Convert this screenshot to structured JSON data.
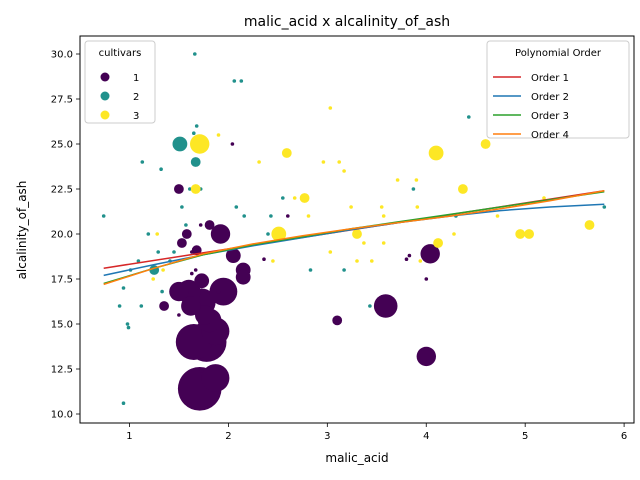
{
  "chart_data": {
    "type": "scatter",
    "title": "malic_acid x alcalinity_of_ash",
    "xlabel": "malic_acid",
    "ylabel": "alcalinity_of_ash",
    "xlim": [
      0.5,
      6.1
    ],
    "ylim": [
      9.5,
      31.0
    ],
    "xticks": [
      1,
      2,
      3,
      4,
      5,
      6
    ],
    "yticks": [
      10.0,
      12.5,
      15.0,
      17.5,
      20.0,
      22.5,
      25.0,
      27.5,
      30.0
    ],
    "grid": false,
    "legend_cultivars": {
      "title": "cultivars",
      "placement": "top-left",
      "entries": [
        {
          "label": "1",
          "color": "#440154"
        },
        {
          "label": "2",
          "color": "#21918c"
        },
        {
          "label": "3",
          "color": "#fde725"
        }
      ]
    },
    "legend_polynomial": {
      "title": "Polynomial Order",
      "placement": "top-right",
      "entries": [
        {
          "label": "Order 1",
          "color": "#d62728"
        },
        {
          "label": "Order 2",
          "color": "#1f77b4"
        },
        {
          "label": "Order 3",
          "color": "#2ca02c"
        },
        {
          "label": "Order 4",
          "color": "#ff7f0e"
        }
      ]
    },
    "size_scale": {
      "min": 1,
      "max": 10
    },
    "series": [
      {
        "cultivar": "1",
        "color": "#440154",
        "points": [
          [
            1.71,
            11.4,
            10
          ],
          [
            1.78,
            14.0,
            9
          ],
          [
            1.65,
            14.0,
            8
          ],
          [
            1.87,
            12.0,
            6
          ],
          [
            1.87,
            14.6,
            6
          ],
          [
            1.73,
            16.2,
            6
          ],
          [
            1.95,
            16.8,
            6
          ],
          [
            1.6,
            16.8,
            5
          ],
          [
            1.81,
            15.2,
            5
          ],
          [
            1.5,
            16.8,
            4
          ],
          [
            1.76,
            15.5,
            4
          ],
          [
            1.62,
            16.0,
            4
          ],
          [
            1.92,
            20.0,
            4
          ],
          [
            2.05,
            18.8,
            3
          ],
          [
            2.15,
            18.0,
            3
          ],
          [
            2.15,
            17.6,
            3
          ],
          [
            1.73,
            17.4,
            3
          ],
          [
            1.35,
            16.0,
            2
          ],
          [
            3.59,
            16.0,
            5
          ],
          [
            4.0,
            13.2,
            4
          ],
          [
            4.04,
            18.9,
            4
          ],
          [
            1.5,
            22.5,
            2
          ],
          [
            1.58,
            20.0,
            2
          ],
          [
            1.53,
            19.5,
            2
          ],
          [
            1.68,
            19.1,
            2
          ],
          [
            1.81,
            20.5,
            2
          ],
          [
            1.72,
            20.5,
            1
          ],
          [
            1.63,
            17.8,
            1
          ],
          [
            3.1,
            15.2,
            2
          ],
          [
            3.83,
            18.8,
            1
          ],
          [
            4.0,
            17.5,
            1
          ],
          [
            2.04,
            25.0,
            1
          ],
          [
            2.6,
            21.0,
            1
          ],
          [
            2.36,
            18.6,
            1
          ],
          [
            1.5,
            15.5,
            1
          ],
          [
            1.67,
            18.0,
            1
          ],
          [
            1.63,
            19.0,
            1
          ],
          [
            3.8,
            18.6,
            1
          ],
          [
            1.73,
            12.4,
            1
          ],
          [
            1.9,
            16.8,
            1
          ]
        ]
      },
      {
        "cultivar": "2",
        "color": "#21918c",
        "points": [
          [
            1.51,
            25.0,
            3
          ],
          [
            1.67,
            24.0,
            2
          ],
          [
            1.66,
            30.0,
            1
          ],
          [
            1.25,
            18.0,
            2
          ],
          [
            0.94,
            17.0,
            1
          ],
          [
            0.9,
            16.0,
            1
          ],
          [
            0.98,
            15.0,
            1
          ],
          [
            1.33,
            16.8,
            1
          ],
          [
            1.09,
            18.5,
            1
          ],
          [
            0.74,
            21.0,
            1
          ],
          [
            0.94,
            10.6,
            1
          ],
          [
            1.53,
            21.5,
            1
          ],
          [
            1.61,
            22.5,
            1
          ],
          [
            1.72,
            22.5,
            1
          ],
          [
            1.12,
            16.0,
            1
          ],
          [
            1.13,
            24.0,
            1
          ],
          [
            1.32,
            23.6,
            1
          ],
          [
            1.65,
            25.6,
            1
          ],
          [
            1.68,
            26.0,
            1
          ],
          [
            2.06,
            28.5,
            1
          ],
          [
            2.13,
            28.5,
            1
          ],
          [
            2.43,
            21.0,
            1
          ],
          [
            2.55,
            22.0,
            1
          ],
          [
            2.83,
            18.0,
            1
          ],
          [
            3.17,
            18.0,
            1
          ],
          [
            3.43,
            16.0,
            1
          ],
          [
            3.87,
            22.5,
            1
          ],
          [
            4.3,
            21.0,
            1
          ],
          [
            4.43,
            26.5,
            1
          ],
          [
            5.8,
            21.5,
            1
          ],
          [
            1.01,
            18.0,
            1
          ],
          [
            1.19,
            20.0,
            1
          ],
          [
            1.29,
            19.0,
            1
          ],
          [
            1.41,
            18.5,
            1
          ],
          [
            1.57,
            20.5,
            1
          ],
          [
            2.08,
            21.5,
            1
          ],
          [
            2.16,
            21.0,
            1
          ],
          [
            2.4,
            20.0,
            1
          ],
          [
            1.45,
            19.0,
            1
          ],
          [
            0.99,
            14.8,
            1
          ]
        ]
      },
      {
        "cultivar": "3",
        "color": "#fde725",
        "points": [
          [
            1.71,
            25.0,
            4
          ],
          [
            2.51,
            20.0,
            3
          ],
          [
            4.1,
            24.5,
            3
          ],
          [
            4.12,
            19.5,
            2
          ],
          [
            5.04,
            20.0,
            2
          ],
          [
            4.95,
            20.0,
            2
          ],
          [
            5.65,
            20.5,
            2
          ],
          [
            4.6,
            25.0,
            2
          ],
          [
            4.37,
            22.5,
            2
          ],
          [
            3.3,
            20.0,
            2
          ],
          [
            2.77,
            22.0,
            2
          ],
          [
            2.59,
            24.5,
            2
          ],
          [
            1.67,
            22.5,
            2
          ],
          [
            3.12,
            24.0,
            1
          ],
          [
            3.17,
            23.5,
            1
          ],
          [
            3.24,
            21.5,
            1
          ],
          [
            3.57,
            21.0,
            1
          ],
          [
            3.57,
            19.5,
            1
          ],
          [
            3.71,
            23.0,
            1
          ],
          [
            3.9,
            23.0,
            1
          ],
          [
            4.28,
            20.0,
            1
          ],
          [
            5.19,
            22.0,
            1
          ],
          [
            2.31,
            24.0,
            1
          ],
          [
            1.9,
            25.5,
            1
          ],
          [
            1.34,
            18.0,
            1
          ],
          [
            1.28,
            20.0,
            1
          ],
          [
            1.24,
            17.5,
            1
          ],
          [
            2.81,
            21.0,
            1
          ],
          [
            2.96,
            24.0,
            1
          ],
          [
            3.03,
            27.0,
            1
          ],
          [
            3.37,
            19.5,
            1
          ],
          [
            3.45,
            18.5,
            1
          ],
          [
            3.3,
            18.5,
            1
          ],
          [
            3.91,
            21.5,
            1
          ],
          [
            4.72,
            21.0,
            1
          ],
          [
            2.45,
            18.5,
            1
          ],
          [
            2.67,
            22.0,
            1
          ],
          [
            3.03,
            19.0,
            1
          ],
          [
            3.55,
            21.5,
            1
          ],
          [
            3.94,
            18.5,
            1
          ]
        ]
      }
    ],
    "fits": [
      {
        "label": "Order 1",
        "color": "#d62728",
        "x": [
          0.74,
          5.8
        ],
        "y": [
          18.1,
          22.4
        ]
      },
      {
        "label": "Order 2",
        "color": "#1f77b4",
        "x": [
          0.74,
          1.25,
          1.75,
          2.25,
          2.75,
          3.25,
          3.75,
          4.25,
          4.75,
          5.25,
          5.8
        ],
        "y": [
          17.7,
          18.3,
          18.85,
          19.35,
          19.8,
          20.25,
          20.65,
          21.0,
          21.3,
          21.5,
          21.65
        ]
      },
      {
        "label": "Order 3",
        "color": "#2ca02c",
        "x": [
          0.74,
          1.25,
          1.75,
          2.25,
          2.75,
          3.25,
          3.75,
          4.25,
          4.75,
          5.25,
          5.8
        ],
        "y": [
          17.25,
          18.1,
          18.85,
          19.4,
          19.85,
          20.3,
          20.7,
          21.1,
          21.5,
          21.9,
          22.35
        ]
      },
      {
        "label": "Order 4",
        "color": "#ff7f0e",
        "x": [
          0.74,
          1.25,
          1.75,
          2.25,
          2.75,
          3.25,
          3.75,
          4.25,
          4.75,
          5.25,
          5.8
        ],
        "y": [
          17.2,
          18.1,
          18.9,
          19.45,
          19.9,
          20.3,
          20.65,
          21.0,
          21.4,
          21.85,
          22.4
        ]
      }
    ]
  }
}
